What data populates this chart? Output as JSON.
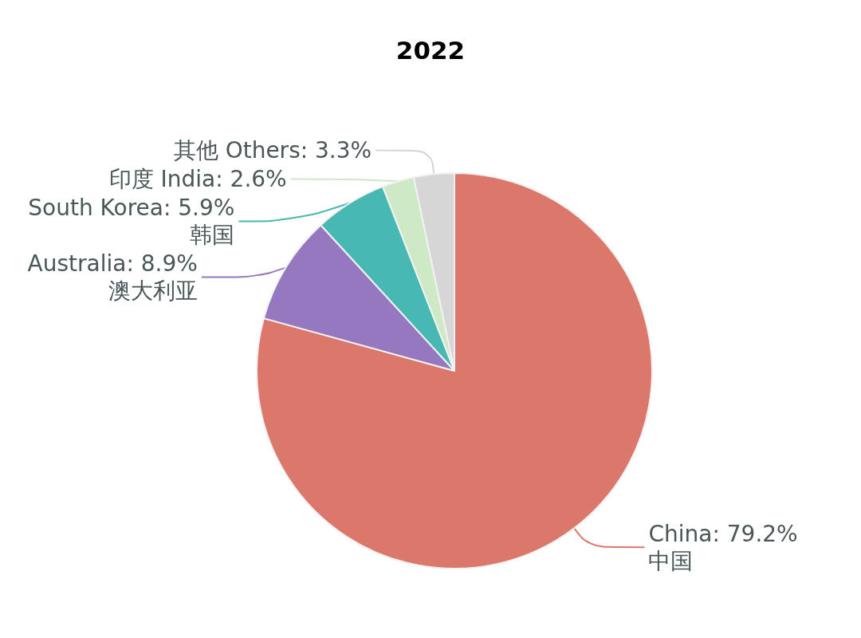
{
  "chart_data": {
    "type": "pie",
    "title": "2022",
    "categories": [
      "China",
      "Australia",
      "South Korea",
      "印度 India",
      "其他 Others"
    ],
    "values": [
      79.2,
      8.9,
      5.9,
      2.6,
      3.3
    ],
    "value_labels": [
      ": 79.2%\n中国",
      ": 8.9%\n澳大利亚",
      ": 5.9%\n韩国",
      ": 2.6%",
      ": 3.3%"
    ],
    "colors": [
      "#dc776c",
      "#9578c0",
      "#47b8b4",
      "#cde9c6",
      "#d6d6d6"
    ]
  }
}
